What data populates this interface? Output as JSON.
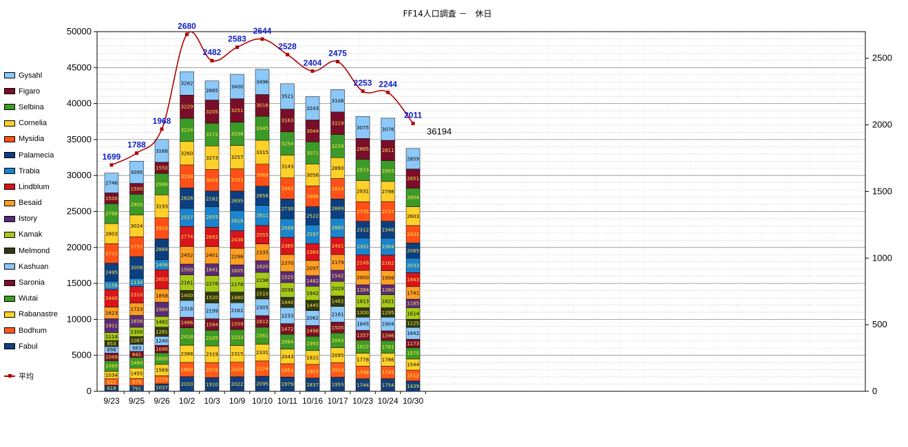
{
  "chart_data": {
    "type": "bar",
    "stacked": true,
    "title": "FF14人口調査 －　休日",
    "categories": [
      "9/23",
      "9/25",
      "9/26",
      "10/2",
      "10/3",
      "10/9",
      "10/10",
      "10/11",
      "10/16",
      "10/17",
      "10/23",
      "10/24",
      "10/30"
    ],
    "ylim": [
      0,
      50000
    ],
    "y_ticks": [
      "0",
      "5000",
      "10000",
      "15000",
      "20000",
      "25000",
      "30000",
      "35000",
      "40000",
      "45000",
      "50000"
    ],
    "y2lim": [
      0,
      2700
    ],
    "y2_ticks": [
      "0",
      "500",
      "1000",
      "1500",
      "2000",
      "2500"
    ],
    "grid": true,
    "legend_position": "left",
    "series": [
      {
        "name": "Fabul",
        "color": "#123e7a",
        "values": [
          818,
          791,
          1037,
          2033,
          1910,
          2022,
          2095,
          1979,
          1837,
          1955,
          1744,
          1754,
          1439
        ]
      },
      {
        "name": "Bodhum",
        "color": "#ff5a1a",
        "values": [
          922,
          979,
          1133,
          1982,
          2078,
          2028,
          2124,
          1851,
          1903,
          2018,
          1768,
          1745,
          1512
        ]
      },
      {
        "name": "Rabanastre",
        "color": "#ffd12a",
        "values": [
          1034,
          1455,
          1569,
          2388,
          2319,
          2315,
          2331,
          2043,
          1921,
          2095,
          1778,
          1786,
          1544
        ]
      },
      {
        "name": "Wutai",
        "color": "#3f9a26",
        "values": [
          1489,
          1484,
          1608,
          2418,
          2185,
          2233,
          2361,
          2064,
          1993,
          2043,
          1822,
          1781,
          1575
        ]
      },
      {
        "name": "Saronia",
        "color": "#7d0f2c",
        "values": [
          1049,
          841,
          1046,
          1486,
          1594,
          1559,
          1612,
          1472,
          1498,
          1505,
          1357,
          1346,
          1173
        ]
      },
      {
        "name": "Kashuan",
        "color": "#8cc8f8",
        "values": [
          898,
          983,
          1240,
          2318,
          2199,
          2161,
          2305,
          2233,
          2062,
          2181,
          1845,
          1904,
          1642
        ]
      },
      {
        "name": "Melmond",
        "color": "#303a10",
        "values": [
          853,
          1067,
          1281,
          1400,
          1520,
          1480,
          1510,
          1440,
          1445,
          1462,
          1300,
          1295,
          1125
        ]
      },
      {
        "name": "Kamak",
        "color": "#a8c91a",
        "values": [
          1114,
          1300,
          1482,
          2161,
          2276,
          2178,
          2198,
          2036,
          1942,
          2029,
          1813,
          1821,
          1614
        ]
      },
      {
        "name": "Istory",
        "color": "#5b2b7a",
        "values": [
          1911,
          1656,
          1984,
          1500,
          1641,
          1605,
          1620,
          1525,
          1482,
          1542,
          1384,
          1380,
          1185
        ]
      },
      {
        "name": "Besaid",
        "color": "#ffa024",
        "values": [
          1623,
          1723,
          1858,
          2452,
          2401,
          2296,
          2335,
          2370,
          2097,
          2179,
          2000,
          1956,
          1741
        ]
      },
      {
        "name": "Lindblum",
        "color": "#d8141c",
        "values": [
          2440,
          2310,
          2653,
          2774,
          2692,
          2436,
          2555,
          2385,
          2364,
          2401,
          2149,
          2162,
          1943
        ]
      },
      {
        "name": "Trabia",
        "color": "#1a84cf",
        "values": [
          1158,
          1134,
          1406,
          2527,
          2855,
          2816,
          2811,
          2599,
          2597,
          2665,
          2351,
          2364,
          2033
        ]
      },
      {
        "name": "Palamecia",
        "color": "#0c3f80",
        "values": [
          2495,
          3006,
          2884,
          2826,
          2162,
          2695,
          2656,
          2730,
          2522,
          2669,
          2312,
          2348,
          2085
        ]
      },
      {
        "name": "Mysidia",
        "color": "#ff5018",
        "values": [
          2711,
          2751,
          2933,
          3199,
          3005,
          3101,
          3068,
          2942,
          2886,
          2843,
          2735,
          2737,
          2432
        ]
      },
      {
        "name": "Cornelia",
        "color": "#ffd02a",
        "values": [
          2803,
          3024,
          3193,
          3260,
          3273,
          3257,
          3315,
          3143,
          3056,
          2893,
          2931,
          2798,
          2603
        ]
      },
      {
        "name": "Selbina",
        "color": "#3c9a28",
        "values": [
          2766,
          2905,
          2986,
          3224,
          3172,
          3238,
          3345,
          3254,
          3071,
          3229,
          2973,
          2903,
          2604
        ]
      },
      {
        "name": "Figaro",
        "color": "#7a0e2a",
        "values": [
          1500,
          1500,
          1550,
          3229,
          3205,
          3251,
          3016,
          3163,
          3044,
          3119,
          2885,
          2811,
          2651
        ]
      },
      {
        "name": "Gysahl",
        "color": "#8cc8f8",
        "values": [
          2746,
          3095,
          3166,
          3262,
          2665,
          3400,
          3496,
          3521,
          3243,
          3106,
          3075,
          3076,
          2859
        ]
      }
    ],
    "line_series": {
      "name": "平均",
      "color": "#b00000",
      "axis": "right",
      "values": [
        1699,
        1788,
        1968,
        2680,
        2482,
        2583,
        2644,
        2528,
        2404,
        2475,
        2253,
        2244,
        2011
      ],
      "labels": [
        "1699",
        "1788",
        "1968",
        "2680",
        "2482",
        "2583",
        "2644",
        "2528",
        "2404",
        "2475",
        "2253",
        "2244",
        "2011"
      ]
    },
    "annotations": [
      {
        "text": "36194",
        "category": "10/30",
        "value": 36194
      }
    ]
  }
}
